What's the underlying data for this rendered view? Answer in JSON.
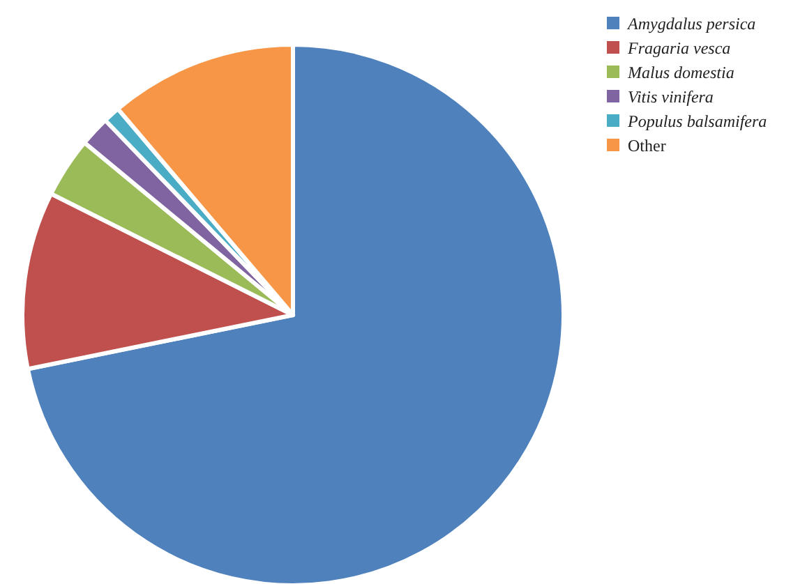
{
  "chart_data": {
    "type": "pie",
    "categories": [
      "Amygdalus persica",
      "Fragaria vesca",
      "Malus domestia",
      "Vitis vinifera",
      "Populus balsamifera",
      "Other"
    ],
    "values": [
      71.8,
      10.6,
      3.6,
      1.8,
      1.0,
      11.2
    ],
    "colors": [
      "#4f81bd",
      "#c0504d",
      "#9bbb59",
      "#8064a2",
      "#4bacc6",
      "#f79646"
    ],
    "legend": "top right"
  }
}
